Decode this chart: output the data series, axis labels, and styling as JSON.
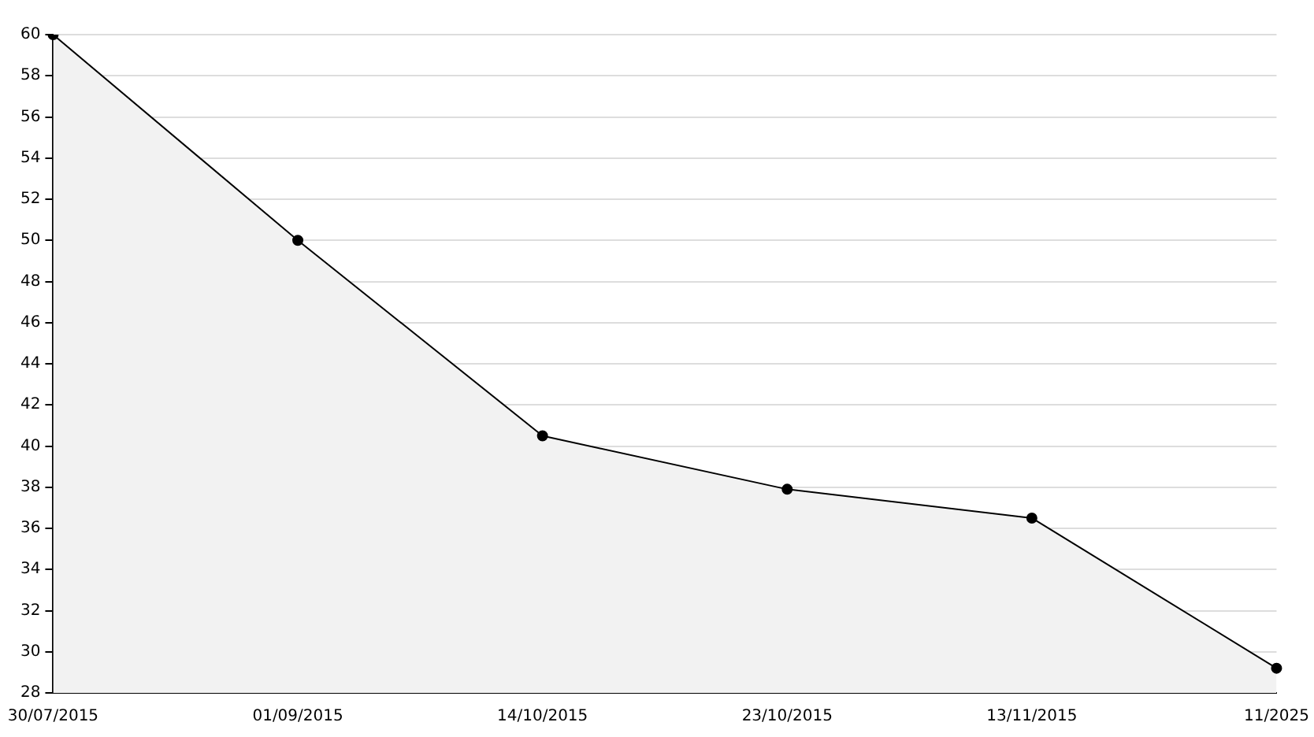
{
  "chart_data": {
    "type": "area",
    "categories": [
      "30/07/2015",
      "01/09/2015",
      "14/10/2015",
      "23/10/2015",
      "13/11/2015",
      "11/2025"
    ],
    "series": [
      {
        "color": "#000000",
        "values": [
          60,
          50,
          40.5,
          37.9,
          36.5,
          29.2
        ]
      }
    ],
    "ylim": [
      28,
      60
    ],
    "yticks": [
      28,
      30,
      32,
      34,
      36,
      38,
      40,
      42,
      44,
      46,
      48,
      50,
      52,
      54,
      56,
      58,
      60
    ],
    "grid": "y",
    "marker": "circle",
    "line_style": "solid"
  }
}
